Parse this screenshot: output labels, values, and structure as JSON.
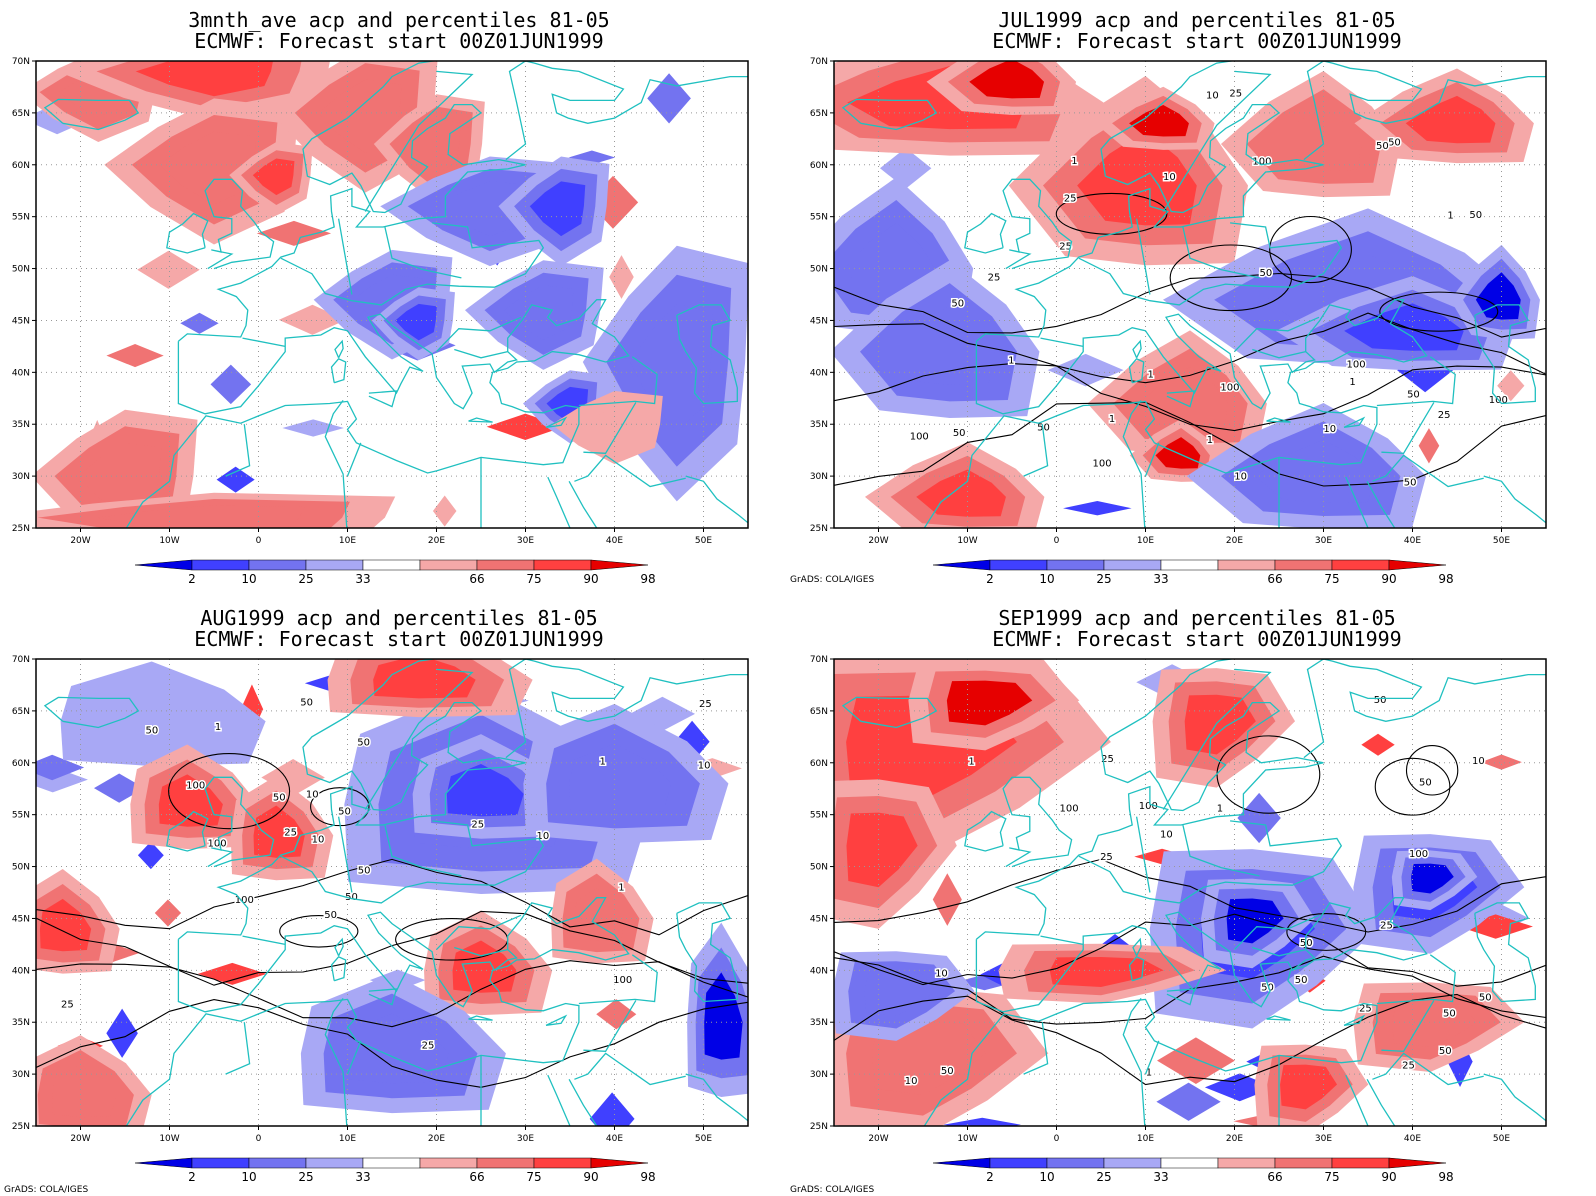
{
  "map": {
    "lat_labels": [
      "70N",
      "65N",
      "60N",
      "55N",
      "50N",
      "45N",
      "40N",
      "35N",
      "30N",
      "25N"
    ],
    "lon_labels": [
      "20W",
      "10W",
      "0",
      "10E",
      "20E",
      "30E",
      "40E",
      "50E"
    ],
    "legend_labels": [
      "2",
      "10",
      "25",
      "33",
      "66",
      "75",
      "90",
      "98"
    ],
    "legend_colors": [
      "#0000e6",
      "#4040ff",
      "#7373f0",
      "#a8a8f5",
      "#f5a8a8",
      "#f07373",
      "#ff4040",
      "#e60000"
    ],
    "coastline_color": "#20c0c0",
    "credit": "GrADS: COLA/IGES"
  },
  "panels": [
    {
      "title_line1": "3mnth_ave acp and percentiles 81-05",
      "title_line2": "ECMWF: Forecast start 00Z01JUN1999",
      "show_credit": false,
      "contour_labels": [],
      "blobs": [
        {
          "lon": -18,
          "lat": 67,
          "rx": 5,
          "ry": 2.5,
          "c": 5
        },
        {
          "lon": -5,
          "lat": 69,
          "rx": 10,
          "ry": 2.5,
          "c": 6
        },
        {
          "lon": -5,
          "lat": 60,
          "rx": 7,
          "ry": 4,
          "c": 5
        },
        {
          "lon": 2,
          "lat": 59,
          "rx": 3,
          "ry": 2,
          "c": 6
        },
        {
          "lon": 12,
          "lat": 65,
          "rx": 6,
          "ry": 4,
          "c": 5
        },
        {
          "lon": 20,
          "lat": 62,
          "rx": 4,
          "ry": 3,
          "c": 5
        },
        {
          "lon": 26,
          "lat": 56,
          "rx": 7,
          "ry": 3,
          "c": 2
        },
        {
          "lon": 34,
          "lat": 56,
          "rx": 4,
          "ry": 3,
          "c": 1
        },
        {
          "lon": 15,
          "lat": 47,
          "rx": 5,
          "ry": 3,
          "c": 2
        },
        {
          "lon": 18,
          "lat": 45,
          "rx": 3,
          "ry": 2,
          "c": 1
        },
        {
          "lon": 32,
          "lat": 46,
          "rx": 5,
          "ry": 3,
          "c": 2
        },
        {
          "lon": 47,
          "lat": 41,
          "rx": 6,
          "ry": 7,
          "c": 2
        },
        {
          "lon": 35,
          "lat": 37,
          "rx": 3,
          "ry": 2,
          "c": 1
        },
        {
          "lon": -15,
          "lat": 30,
          "rx": 6,
          "ry": 4,
          "c": 5
        },
        {
          "lon": -5,
          "lat": 26,
          "rx": 15,
          "ry": 1.5,
          "c": 5
        },
        {
          "lon": 40,
          "lat": 35,
          "rx": 4,
          "ry": 2,
          "c": 4
        }
      ]
    },
    {
      "title_line1": "JUL1999 acp and percentiles 81-05",
      "title_line2": "ECMWF: Forecast start 00Z01JUN1999",
      "show_credit": true,
      "contour_labels": [
        "50",
        "50",
        "50",
        "100",
        "50",
        "50",
        "100",
        "100",
        "100",
        "100",
        "50",
        "50",
        "100",
        "25",
        "25",
        "10",
        "10",
        "25",
        "50",
        "50",
        "1",
        "10",
        "1",
        "1",
        "25",
        "25",
        "10",
        "1",
        "1",
        "1",
        "1"
      ],
      "blobs": [
        {
          "lon": -12,
          "lat": 66,
          "rx": 12,
          "ry": 4,
          "c": 6
        },
        {
          "lon": -5,
          "lat": 68,
          "rx": 5,
          "ry": 2.5,
          "c": 7
        },
        {
          "lon": 10,
          "lat": 58,
          "rx": 8,
          "ry": 6,
          "c": 6
        },
        {
          "lon": 12,
          "lat": 64,
          "rx": 4,
          "ry": 2,
          "c": 7
        },
        {
          "lon": 30,
          "lat": 62,
          "rx": 6,
          "ry": 4,
          "c": 5
        },
        {
          "lon": 45,
          "lat": 64,
          "rx": 6,
          "ry": 3,
          "c": 6
        },
        {
          "lon": -18,
          "lat": 50,
          "rx": 6,
          "ry": 5,
          "c": 2
        },
        {
          "lon": -12,
          "lat": 42,
          "rx": 7,
          "ry": 5,
          "c": 2
        },
        {
          "lon": 35,
          "lat": 47,
          "rx": 12,
          "ry": 5,
          "c": 2
        },
        {
          "lon": 40,
          "lat": 44,
          "rx": 8,
          "ry": 3,
          "c": 1
        },
        {
          "lon": 50,
          "lat": 47,
          "rx": 3,
          "ry": 3,
          "c": 0
        },
        {
          "lon": 15,
          "lat": 37,
          "rx": 6,
          "ry": 4,
          "c": 5
        },
        {
          "lon": 14,
          "lat": 32,
          "rx": 3,
          "ry": 2,
          "c": 7
        },
        {
          "lon": -10,
          "lat": 28,
          "rx": 6,
          "ry": 3,
          "c": 6
        },
        {
          "lon": 30,
          "lat": 30,
          "rx": 8,
          "ry": 4,
          "c": 2
        }
      ]
    },
    {
      "title_line1": "AUG1999 acp and percentiles 81-05",
      "title_line2": "ECMWF: Forecast start 00Z01JUN1999",
      "show_credit": true,
      "contour_labels": [
        "50",
        "100",
        "50",
        "50",
        "100",
        "100",
        "50",
        "100",
        "50",
        "25",
        "50",
        "10",
        "10",
        "10",
        "25",
        "25",
        "25",
        "1",
        "1",
        "25",
        "10",
        "1",
        "50",
        "50"
      ],
      "blobs": [
        {
          "lon": 25,
          "lat": 56,
          "rx": 12,
          "ry": 6,
          "c": 2
        },
        {
          "lon": 25,
          "lat": 57,
          "rx": 6,
          "ry": 3,
          "c": 1
        },
        {
          "lon": 40,
          "lat": 58,
          "rx": 8,
          "ry": 4,
          "c": 2
        },
        {
          "lon": -12,
          "lat": 64,
          "rx": 8,
          "ry": 3,
          "c": 3
        },
        {
          "lon": -8,
          "lat": 56,
          "rx": 5,
          "ry": 3,
          "c": 6
        },
        {
          "lon": 2,
          "lat": 53,
          "rx": 4,
          "ry": 3,
          "c": 6
        },
        {
          "lon": 18,
          "lat": 68,
          "rx": 8,
          "ry": 2.5,
          "c": 6
        },
        {
          "lon": -22,
          "lat": 44,
          "rx": 4,
          "ry": 3,
          "c": 6
        },
        {
          "lon": 25,
          "lat": 40,
          "rx": 5,
          "ry": 3,
          "c": 6
        },
        {
          "lon": 38,
          "lat": 45,
          "rx": 4,
          "ry": 3,
          "c": 5
        },
        {
          "lon": 52,
          "lat": 35,
          "rx": 3,
          "ry": 5,
          "c": 0
        },
        {
          "lon": 15,
          "lat": 32,
          "rx": 8,
          "ry": 4,
          "c": 2
        },
        {
          "lon": -20,
          "lat": 28,
          "rx": 5,
          "ry": 3,
          "c": 5
        }
      ]
    },
    {
      "title_line1": "SEP1999 acp and percentiles 81-05",
      "title_line2": "ECMWF: Forecast start 00Z01JUN1999",
      "show_credit": true,
      "contour_labels": [
        "100",
        "50",
        "100",
        "100",
        "50",
        "50",
        "50",
        "50",
        "50",
        "50",
        "25",
        "25",
        "50",
        "10",
        "10",
        "1",
        "25",
        "1",
        "50",
        "25",
        "10",
        "10",
        "1",
        "25"
      ],
      "blobs": [
        {
          "lon": -15,
          "lat": 62,
          "rx": 12,
          "ry": 7,
          "c": 6
        },
        {
          "lon": -8,
          "lat": 66,
          "rx": 6,
          "ry": 3,
          "c": 7
        },
        {
          "lon": -20,
          "lat": 52,
          "rx": 5,
          "ry": 5,
          "c": 6
        },
        {
          "lon": 18,
          "lat": 64,
          "rx": 5,
          "ry": 4,
          "c": 6
        },
        {
          "lon": 22,
          "lat": 44,
          "rx": 8,
          "ry": 6,
          "c": 1
        },
        {
          "lon": 22,
          "lat": 45,
          "rx": 4,
          "ry": 3,
          "c": 0
        },
        {
          "lon": 42,
          "lat": 48,
          "rx": 6,
          "ry": 4,
          "c": 1
        },
        {
          "lon": 42,
          "lat": 49,
          "rx": 3,
          "ry": 2,
          "c": 0
        },
        {
          "lon": 5,
          "lat": 40,
          "rx": 8,
          "ry": 2,
          "c": 6
        },
        {
          "lon": -15,
          "lat": 32,
          "rx": 8,
          "ry": 5,
          "c": 5
        },
        {
          "lon": 28,
          "lat": 29,
          "rx": 4,
          "ry": 3,
          "c": 6
        },
        {
          "lon": 42,
          "lat": 35,
          "rx": 6,
          "ry": 3,
          "c": 5
        },
        {
          "lon": -18,
          "lat": 38,
          "rx": 5,
          "ry": 3,
          "c": 2
        }
      ]
    }
  ]
}
